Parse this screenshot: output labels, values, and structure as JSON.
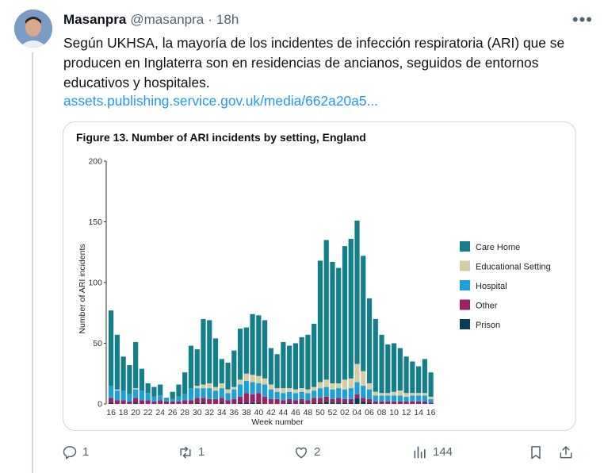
{
  "tweet": {
    "display_name": "Masanpra",
    "handle": "@masanpra",
    "separator": "·",
    "time": "18h",
    "more_label": "•••",
    "text": "Según UKHSA, la mayoría de los incidentes de infección respiratoria (ARI) que se producen en Inglaterra son en residencias de ancianos, seguidos de entornos educativos y hospitales.",
    "link_text": "assets.publishing.service.gov.uk/media/662a20a5..."
  },
  "actions": {
    "reply_count": "1",
    "retweet_count": "1",
    "like_count": "2",
    "views_count": "144"
  },
  "icons": [
    "reply-icon",
    "retweet-icon",
    "like-icon",
    "views-icon",
    "bookmark-icon",
    "share-icon",
    "more-icon"
  ],
  "chart_data": {
    "type": "bar",
    "stacked": true,
    "title": "Figure 13. Number of ARI incidents by setting, England",
    "xlabel": "Week number",
    "ylabel": "Number of ARI incidents",
    "ylim": [
      0,
      200
    ],
    "yticks": [
      0,
      50,
      100,
      150,
      200
    ],
    "legend_position": "right",
    "grid": false,
    "categories": [
      "16",
      "17",
      "18",
      "19",
      "20",
      "21",
      "22",
      "23",
      "24",
      "25",
      "26",
      "27",
      "28",
      "29",
      "30",
      "31",
      "32",
      "33",
      "34",
      "35",
      "36",
      "37",
      "38",
      "39",
      "40",
      "41",
      "42",
      "43",
      "44",
      "45",
      "46",
      "47",
      "48",
      "49",
      "50",
      "51",
      "52",
      "01",
      "02",
      "03",
      "04",
      "05",
      "06",
      "07",
      "08",
      "09",
      "10",
      "11",
      "12",
      "13",
      "14",
      "15",
      "16"
    ],
    "xtick_labels": [
      "16",
      "18",
      "20",
      "22",
      "24",
      "26",
      "28",
      "30",
      "32",
      "34",
      "36",
      "38",
      "40",
      "42",
      "44",
      "46",
      "48",
      "50",
      "52",
      "02",
      "04",
      "06",
      "08",
      "10",
      "12",
      "14",
      "16"
    ],
    "series": [
      {
        "name": "Care Home",
        "color": "#137f8a",
        "values": [
          62,
          45,
          28,
          24,
          38,
          18,
          8,
          8,
          9,
          1,
          6,
          10,
          18,
          35,
          30,
          54,
          52,
          40,
          20,
          22,
          30,
          42,
          38,
          50,
          50,
          48,
          30,
          28,
          38,
          35,
          38,
          42,
          45,
          52,
          100,
          115,
          100,
          95,
          110,
          115,
          118,
          95,
          70,
          60,
          48,
          40,
          40,
          35,
          30,
          26,
          22,
          28,
          20
        ]
      },
      {
        "name": "Educational Setting",
        "color": "#d6cca4",
        "values": [
          0,
          1,
          0,
          0,
          1,
          0,
          0,
          0,
          0,
          0,
          0,
          0,
          0,
          0,
          2,
          3,
          4,
          3,
          4,
          3,
          2,
          4,
          6,
          6,
          6,
          5,
          4,
          3,
          4,
          3,
          3,
          3,
          3,
          3,
          5,
          6,
          5,
          4,
          8,
          8,
          15,
          12,
          5,
          3,
          2,
          2,
          3,
          4,
          3,
          2,
          2,
          2,
          2
        ]
      },
      {
        "name": "Hospital",
        "color": "#1e9fd8",
        "values": [
          10,
          8,
          8,
          6,
          7,
          8,
          6,
          4,
          4,
          2,
          2,
          4,
          5,
          10,
          8,
          8,
          9,
          7,
          8,
          6,
          8,
          10,
          10,
          10,
          8,
          10,
          8,
          6,
          6,
          6,
          6,
          6,
          6,
          6,
          8,
          8,
          8,
          8,
          8,
          9,
          10,
          10,
          8,
          5,
          5,
          5,
          5,
          5,
          4,
          5,
          5,
          5,
          3
        ]
      },
      {
        "name": "Other",
        "color": "#9c2262",
        "values": [
          4,
          3,
          3,
          2,
          4,
          3,
          3,
          2,
          3,
          2,
          2,
          2,
          3,
          3,
          4,
          4,
          4,
          4,
          4,
          3,
          4,
          5,
          8,
          7,
          8,
          6,
          4,
          4,
          3,
          3,
          3,
          3,
          3,
          4,
          4,
          4,
          3,
          4,
          3,
          3,
          3,
          3,
          3,
          2,
          2,
          2,
          2,
          2,
          2,
          2,
          2,
          2,
          1
        ]
      },
      {
        "name": "Prison",
        "color": "#0d3a56",
        "values": [
          1,
          0,
          0,
          0,
          1,
          0,
          0,
          0,
          0,
          0,
          0,
          0,
          0,
          0,
          1,
          1,
          0,
          0,
          1,
          0,
          0,
          1,
          1,
          1,
          1,
          0,
          0,
          0,
          0,
          1,
          0,
          1,
          0,
          1,
          1,
          2,
          1,
          1,
          1,
          1,
          5,
          2,
          1,
          0,
          0,
          0,
          0,
          0,
          0,
          0,
          0,
          0,
          0
        ]
      }
    ]
  }
}
